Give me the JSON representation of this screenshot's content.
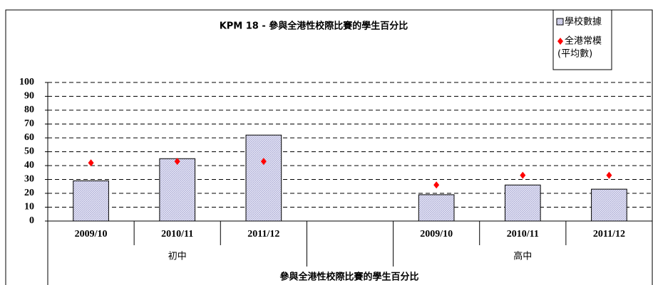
{
  "chart_data": {
    "type": "bar",
    "title": "KPM 18 - 參與全港性校際比賽的學生百分比",
    "x_label": "參與全港性校際比賽的學生百分比",
    "categories": [
      "2009/10",
      "2010/11",
      "2011/12",
      null,
      "2009/10",
      "2010/11",
      "2011/12"
    ],
    "groups": [
      {
        "label": "初中",
        "categories": [
          0,
          1,
          2
        ]
      },
      {
        "label": "高中",
        "categories": [
          4,
          5,
          6
        ]
      }
    ],
    "series": [
      {
        "name": "學校數據",
        "type": "bar",
        "color": "#d8d8ee",
        "values": [
          29,
          45,
          62,
          null,
          19,
          26,
          23
        ]
      },
      {
        "name": "全港常模",
        "name_note": "(平均數)",
        "type": "scatter",
        "color": "#ff0000",
        "values": [
          42,
          43,
          43,
          null,
          26,
          33,
          33
        ]
      }
    ],
    "ylim": [
      0,
      100
    ],
    "yticks": [
      0,
      10,
      20,
      30,
      40,
      50,
      60,
      70,
      80,
      90,
      100
    ],
    "grid": true,
    "legend": "top-right"
  }
}
